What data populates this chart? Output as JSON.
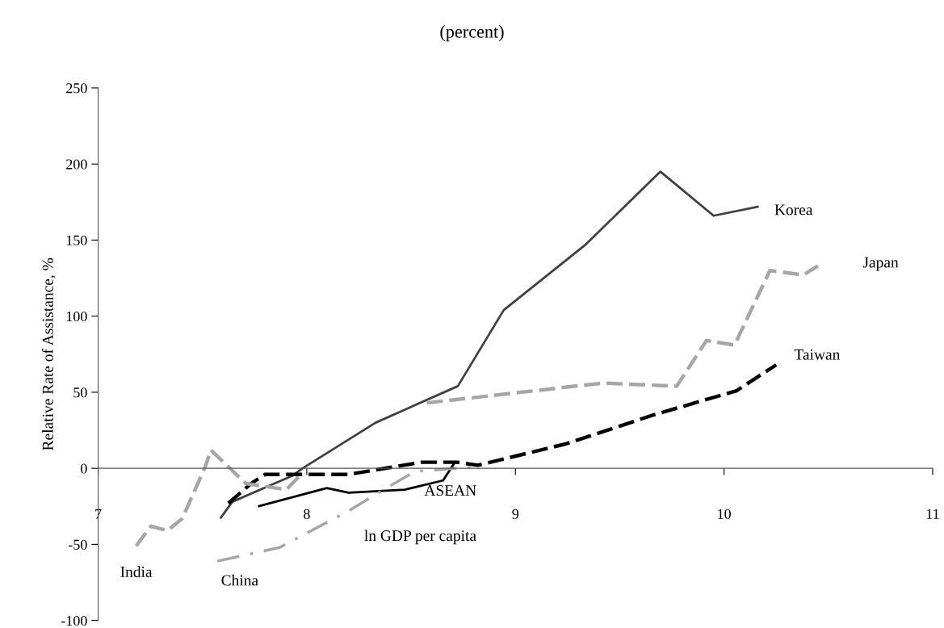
{
  "chart_data": {
    "type": "line",
    "title": "(percent)",
    "xlabel": "ln GDP per capita",
    "ylabel": "Relative Rate of Assistance, %",
    "xlim": [
      7,
      11
    ],
    "xticks": [
      7,
      8,
      9,
      10,
      11
    ],
    "ylim": [
      -100,
      250
    ],
    "yticks": [
      -100,
      -50,
      0,
      50,
      100,
      150,
      200,
      250
    ],
    "legend": false,
    "marker": "none",
    "series": [
      {
        "name": "Korea",
        "color": "#404040",
        "line_style": "solid",
        "x": [
          7.585,
          7.643,
          7.93,
          7.98,
          8.33,
          8.724,
          8.944,
          9.336,
          9.695,
          9.95,
          10.166
        ],
        "values": [
          -33,
          -22,
          -5,
          0,
          30,
          54,
          104,
          147,
          195,
          166,
          172
        ]
      },
      {
        "name": "Japan",
        "color": "#a6a6a6",
        "line_style": "dashed",
        "x": [
          8.575,
          9.417,
          9.773,
          9.916,
          10.05,
          10.22,
          10.38,
          10.45
        ],
        "values": [
          43,
          56,
          54,
          84,
          81,
          130,
          127,
          133
        ]
      },
      {
        "name": "Taiwan",
        "color": "#000000",
        "line_style": "dashed",
        "x": [
          7.624,
          7.733,
          7.8,
          8.2,
          8.55,
          8.72,
          8.82,
          9.24,
          9.66,
          10.06,
          10.25
        ],
        "values": [
          -23,
          -10,
          -4,
          -4,
          4,
          4,
          2,
          16,
          35,
          51,
          68
        ]
      },
      {
        "name": "ASEAN",
        "color": "#000000",
        "line_style": "solid",
        "x": [
          7.766,
          8.096,
          8.2,
          8.47,
          8.653,
          8.71
        ],
        "values": [
          -25,
          -13,
          -16,
          -14,
          -8,
          4
        ]
      },
      {
        "name": "India",
        "color": "#a6a6a6",
        "line_style": "dashed",
        "x": [
          7.182,
          7.253,
          7.332,
          7.403,
          7.513,
          7.54,
          7.708,
          7.902,
          7.98
        ],
        "values": [
          -51,
          -38,
          -41,
          -33,
          1,
          12,
          -10,
          -14,
          -3
        ]
      },
      {
        "name": "China",
        "color": "#a6a6a6",
        "line_style": "dashdot",
        "x": [
          7.571,
          7.87,
          8.2,
          8.394,
          8.52,
          8.835
        ],
        "values": [
          -61,
          -52,
          -28,
          -12,
          -2,
          1
        ]
      }
    ]
  }
}
